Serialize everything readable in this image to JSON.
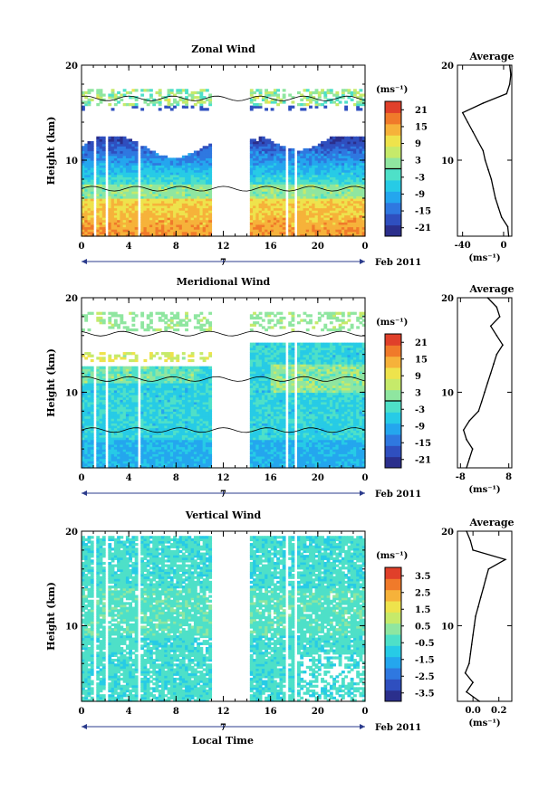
{
  "figure": {
    "x_label": "Local Time",
    "date_label": "Feb 2011",
    "day_label": "7",
    "average_title": "Average"
  },
  "chart_data": [
    {
      "type": "heatmap",
      "title": "Zonal Wind",
      "ylabel": "Height (km)",
      "xlabel": "",
      "xlim": [
        0,
        24
      ],
      "ylim": [
        2,
        20
      ],
      "x_ticks": [
        "0",
        "4",
        "8",
        "12",
        "16",
        "20",
        "0"
      ],
      "y_ticks": [
        "10",
        "20"
      ],
      "colorbar": {
        "unit": "(ms⁻¹)",
        "range": [
          -24,
          24
        ],
        "ticks": [
          "21",
          "15",
          "9",
          "3",
          "-3",
          "-9",
          "-15",
          "-21"
        ]
      },
      "data_gaps_hours": [
        [
          1.0,
          1.3
        ],
        [
          2.0,
          2.3
        ],
        [
          4.7,
          5.0
        ],
        [
          5.9,
          6.1
        ],
        [
          10.9,
          14.3
        ],
        [
          17.2,
          17.4
        ],
        [
          18.0,
          18.2
        ]
      ],
      "profile": {
        "title": "Average",
        "xlabel": "(ms⁻¹)",
        "x_ticks": [
          "-40",
          "0"
        ],
        "y_ticks": [
          "10",
          "20"
        ],
        "xlim": [
          -45,
          8
        ],
        "height_km": [
          2,
          3,
          4,
          5,
          6,
          7,
          8,
          9,
          10,
          11,
          12,
          13,
          14,
          15,
          16,
          17,
          18,
          19,
          20
        ],
        "value": [
          5,
          4,
          -2,
          -5,
          -8,
          -10,
          -12,
          -15,
          -18,
          -20,
          -25,
          -30,
          -35,
          -40,
          -20,
          3,
          6,
          7,
          6
        ]
      }
    },
    {
      "type": "heatmap",
      "title": "Meridional Wind",
      "ylabel": "Height (km)",
      "xlabel": "",
      "xlim": [
        0,
        24
      ],
      "ylim": [
        2,
        20
      ],
      "x_ticks": [
        "0",
        "4",
        "8",
        "12",
        "16",
        "20",
        "0"
      ],
      "y_ticks": [
        "10",
        "20"
      ],
      "colorbar": {
        "unit": "(ms⁻¹)",
        "range": [
          -24,
          24
        ],
        "ticks": [
          "21",
          "15",
          "9",
          "3",
          "-3",
          "-9",
          "-15",
          "-21"
        ]
      },
      "data_gaps_hours": [
        [
          1.0,
          1.3
        ],
        [
          2.0,
          2.3
        ],
        [
          4.7,
          5.0
        ],
        [
          5.9,
          6.1
        ],
        [
          10.9,
          14.3
        ],
        [
          17.2,
          17.4
        ],
        [
          18.0,
          18.2
        ]
      ],
      "profile": {
        "title": "Average",
        "xlabel": "(ms⁻¹)",
        "x_ticks": [
          "-8",
          "8"
        ],
        "y_ticks": [
          "10",
          "20"
        ],
        "xlim": [
          -9,
          9
        ],
        "height_km": [
          2,
          3,
          4,
          5,
          6,
          7,
          8,
          9,
          10,
          11,
          12,
          13,
          14,
          15,
          16,
          17,
          18,
          19,
          20
        ],
        "value": [
          -6,
          -5,
          -4,
          -6,
          -7,
          -5,
          -2,
          -1,
          0,
          1,
          2,
          3,
          4,
          6,
          4,
          2,
          5,
          4,
          1
        ]
      }
    },
    {
      "type": "heatmap",
      "title": "Vertical Wind",
      "ylabel": "Height (km)",
      "xlabel": "Local Time",
      "xlim": [
        0,
        24
      ],
      "ylim": [
        2,
        20
      ],
      "x_ticks": [
        "0",
        "4",
        "8",
        "12",
        "16",
        "20",
        "0"
      ],
      "y_ticks": [
        "10",
        "20"
      ],
      "colorbar": {
        "unit": "(ms⁻¹)",
        "range": [
          -4,
          4
        ],
        "ticks": [
          "3.5",
          "2.5",
          "1.5",
          "0.5",
          "-0.5",
          "-1.5",
          "-2.5",
          "-3.5"
        ]
      },
      "data_gaps_hours": [
        [
          1.0,
          1.3
        ],
        [
          2.0,
          2.3
        ],
        [
          4.7,
          5.0
        ],
        [
          5.9,
          6.1
        ],
        [
          10.9,
          14.3
        ],
        [
          17.2,
          17.4
        ],
        [
          18.0,
          18.2
        ]
      ],
      "profile": {
        "title": "Average",
        "xlabel": "(ms⁻¹)",
        "x_ticks": [
          "0.0",
          "0.2"
        ],
        "y_ticks": [
          "10",
          "20"
        ],
        "xlim": [
          -0.12,
          0.3
        ],
        "height_km": [
          2,
          3,
          4,
          5,
          6,
          7,
          8,
          9,
          10,
          11,
          12,
          13,
          14,
          15,
          16,
          17,
          18,
          19,
          20
        ],
        "value": [
          0.05,
          -0.05,
          0.0,
          -0.06,
          -0.03,
          -0.02,
          -0.01,
          0.0,
          0.01,
          0.02,
          0.04,
          0.06,
          0.08,
          0.1,
          0.12,
          0.25,
          0.0,
          -0.02,
          -0.05
        ]
      }
    }
  ]
}
